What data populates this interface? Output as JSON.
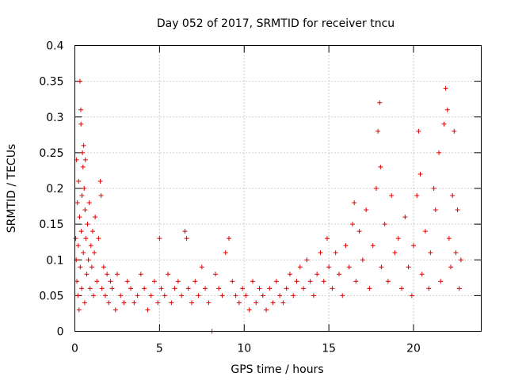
{
  "chart_data": {
    "type": "scatter",
    "title": "Day 052 of 2017, SRMTID for receiver tncu",
    "xlabel": "GPS time / hours",
    "ylabel": "SRMTID / TECUs",
    "xlim": [
      0,
      24
    ],
    "ylim": [
      0,
      0.4
    ],
    "xticks": [
      0,
      5,
      10,
      15,
      20
    ],
    "yticks": [
      0,
      0.05,
      0.1,
      0.15,
      0.2,
      0.25,
      0.3,
      0.35,
      0.4
    ],
    "xtick_labels": [
      "0",
      "5",
      "10",
      "15",
      "20"
    ],
    "ytick_labels": [
      "0",
      "0.05",
      "0.1",
      "0.15",
      "0.2",
      "0.25",
      "0.3",
      "0.35",
      "0.4"
    ],
    "grid": true,
    "marker": "plus",
    "color": "#e00000",
    "series": [
      {
        "name": "SRMTID",
        "points": [
          [
            0.05,
            0.13
          ],
          [
            0.08,
            0.1
          ],
          [
            0.1,
            0.24
          ],
          [
            0.12,
            0.07
          ],
          [
            0.15,
            0.18
          ],
          [
            0.18,
            0.05
          ],
          [
            0.2,
            0.12
          ],
          [
            0.22,
            0.21
          ],
          [
            0.25,
            0.03
          ],
          [
            0.28,
            0.16
          ],
          [
            0.3,
            0.35
          ],
          [
            0.32,
            0.09
          ],
          [
            0.35,
            0.31
          ],
          [
            0.36,
            0.29
          ],
          [
            0.38,
            0.14
          ],
          [
            0.4,
            0.06
          ],
          [
            0.42,
            0.19
          ],
          [
            0.45,
            0.25
          ],
          [
            0.48,
            0.23
          ],
          [
            0.5,
            0.11
          ],
          [
            0.52,
            0.26
          ],
          [
            0.55,
            0.2
          ],
          [
            0.58,
            0.04
          ],
          [
            0.6,
            0.17
          ],
          [
            0.62,
            0.24
          ],
          [
            0.65,
            0.13
          ],
          [
            0.7,
            0.08
          ],
          [
            0.75,
            0.15
          ],
          [
            0.8,
            0.1
          ],
          [
            0.85,
            0.18
          ],
          [
            0.9,
            0.06
          ],
          [
            0.95,
            0.12
          ],
          [
            1.0,
            0.09
          ],
          [
            1.05,
            0.14
          ],
          [
            1.1,
            0.05
          ],
          [
            1.15,
            0.11
          ],
          [
            1.2,
            0.16
          ],
          [
            1.3,
            0.07
          ],
          [
            1.4,
            0.13
          ],
          [
            1.5,
            0.21
          ],
          [
            1.55,
            0.19
          ],
          [
            1.6,
            0.06
          ],
          [
            1.7,
            0.09
          ],
          [
            1.8,
            0.05
          ],
          [
            1.9,
            0.08
          ],
          [
            2.0,
            0.04
          ],
          [
            2.1,
            0.07
          ],
          [
            2.2,
            0.06
          ],
          [
            2.4,
            0.03
          ],
          [
            2.5,
            0.08
          ],
          [
            2.7,
            0.05
          ],
          [
            2.9,
            0.04
          ],
          [
            3.1,
            0.07
          ],
          [
            3.3,
            0.06
          ],
          [
            3.5,
            0.04
          ],
          [
            3.7,
            0.05
          ],
          [
            3.9,
            0.08
          ],
          [
            4.1,
            0.06
          ],
          [
            4.3,
            0.03
          ],
          [
            4.5,
            0.05
          ],
          [
            4.7,
            0.07
          ],
          [
            4.9,
            0.04
          ],
          [
            5.0,
            0.13
          ],
          [
            5.1,
            0.06
          ],
          [
            5.3,
            0.05
          ],
          [
            5.5,
            0.08
          ],
          [
            5.7,
            0.04
          ],
          [
            5.9,
            0.06
          ],
          [
            6.1,
            0.07
          ],
          [
            6.3,
            0.05
          ],
          [
            6.5,
            0.14
          ],
          [
            6.6,
            0.13
          ],
          [
            6.7,
            0.06
          ],
          [
            6.9,
            0.04
          ],
          [
            7.1,
            0.07
          ],
          [
            7.3,
            0.05
          ],
          [
            7.5,
            0.09
          ],
          [
            7.7,
            0.06
          ],
          [
            7.9,
            0.04
          ],
          [
            8.1,
            0.0
          ],
          [
            8.3,
            0.08
          ],
          [
            8.5,
            0.06
          ],
          [
            8.7,
            0.05
          ],
          [
            8.9,
            0.11
          ],
          [
            9.1,
            0.13
          ],
          [
            9.3,
            0.07
          ],
          [
            9.5,
            0.05
          ],
          [
            9.7,
            0.04
          ],
          [
            9.9,
            0.06
          ],
          [
            10.1,
            0.05
          ],
          [
            10.3,
            0.03
          ],
          [
            10.5,
            0.07
          ],
          [
            10.7,
            0.04
          ],
          [
            10.9,
            0.06
          ],
          [
            11.1,
            0.05
          ],
          [
            11.3,
            0.03
          ],
          [
            11.5,
            0.06
          ],
          [
            11.7,
            0.04
          ],
          [
            11.9,
            0.07
          ],
          [
            12.1,
            0.05
          ],
          [
            12.3,
            0.04
          ],
          [
            12.5,
            0.06
          ],
          [
            12.7,
            0.08
          ],
          [
            12.9,
            0.05
          ],
          [
            13.1,
            0.07
          ],
          [
            13.3,
            0.09
          ],
          [
            13.5,
            0.06
          ],
          [
            13.7,
            0.1
          ],
          [
            13.9,
            0.07
          ],
          [
            14.1,
            0.05
          ],
          [
            14.3,
            0.08
          ],
          [
            14.5,
            0.11
          ],
          [
            14.7,
            0.07
          ],
          [
            14.9,
            0.13
          ],
          [
            15.0,
            0.09
          ],
          [
            15.2,
            0.06
          ],
          [
            15.4,
            0.11
          ],
          [
            15.6,
            0.08
          ],
          [
            15.8,
            0.05
          ],
          [
            16.0,
            0.12
          ],
          [
            16.2,
            0.09
          ],
          [
            16.4,
            0.15
          ],
          [
            16.5,
            0.18
          ],
          [
            16.6,
            0.07
          ],
          [
            16.8,
            0.14
          ],
          [
            17.0,
            0.1
          ],
          [
            17.2,
            0.17
          ],
          [
            17.4,
            0.06
          ],
          [
            17.6,
            0.12
          ],
          [
            17.8,
            0.2
          ],
          [
            17.9,
            0.28
          ],
          [
            18.0,
            0.32
          ],
          [
            18.05,
            0.23
          ],
          [
            18.1,
            0.09
          ],
          [
            18.3,
            0.15
          ],
          [
            18.5,
            0.07
          ],
          [
            18.7,
            0.19
          ],
          [
            18.9,
            0.11
          ],
          [
            19.1,
            0.13
          ],
          [
            19.3,
            0.06
          ],
          [
            19.5,
            0.16
          ],
          [
            19.7,
            0.09
          ],
          [
            19.9,
            0.05
          ],
          [
            20.0,
            0.12
          ],
          [
            20.2,
            0.19
          ],
          [
            20.3,
            0.28
          ],
          [
            20.4,
            0.22
          ],
          [
            20.5,
            0.08
          ],
          [
            20.7,
            0.14
          ],
          [
            20.9,
            0.06
          ],
          [
            21.0,
            0.11
          ],
          [
            21.2,
            0.2
          ],
          [
            21.3,
            0.17
          ],
          [
            21.5,
            0.25
          ],
          [
            21.6,
            0.07
          ],
          [
            21.8,
            0.29
          ],
          [
            21.9,
            0.34
          ],
          [
            22.0,
            0.31
          ],
          [
            22.1,
            0.13
          ],
          [
            22.2,
            0.09
          ],
          [
            22.3,
            0.19
          ],
          [
            22.4,
            0.28
          ],
          [
            22.5,
            0.11
          ],
          [
            22.6,
            0.17
          ],
          [
            22.7,
            0.06
          ],
          [
            22.8,
            0.1
          ]
        ]
      }
    ]
  }
}
